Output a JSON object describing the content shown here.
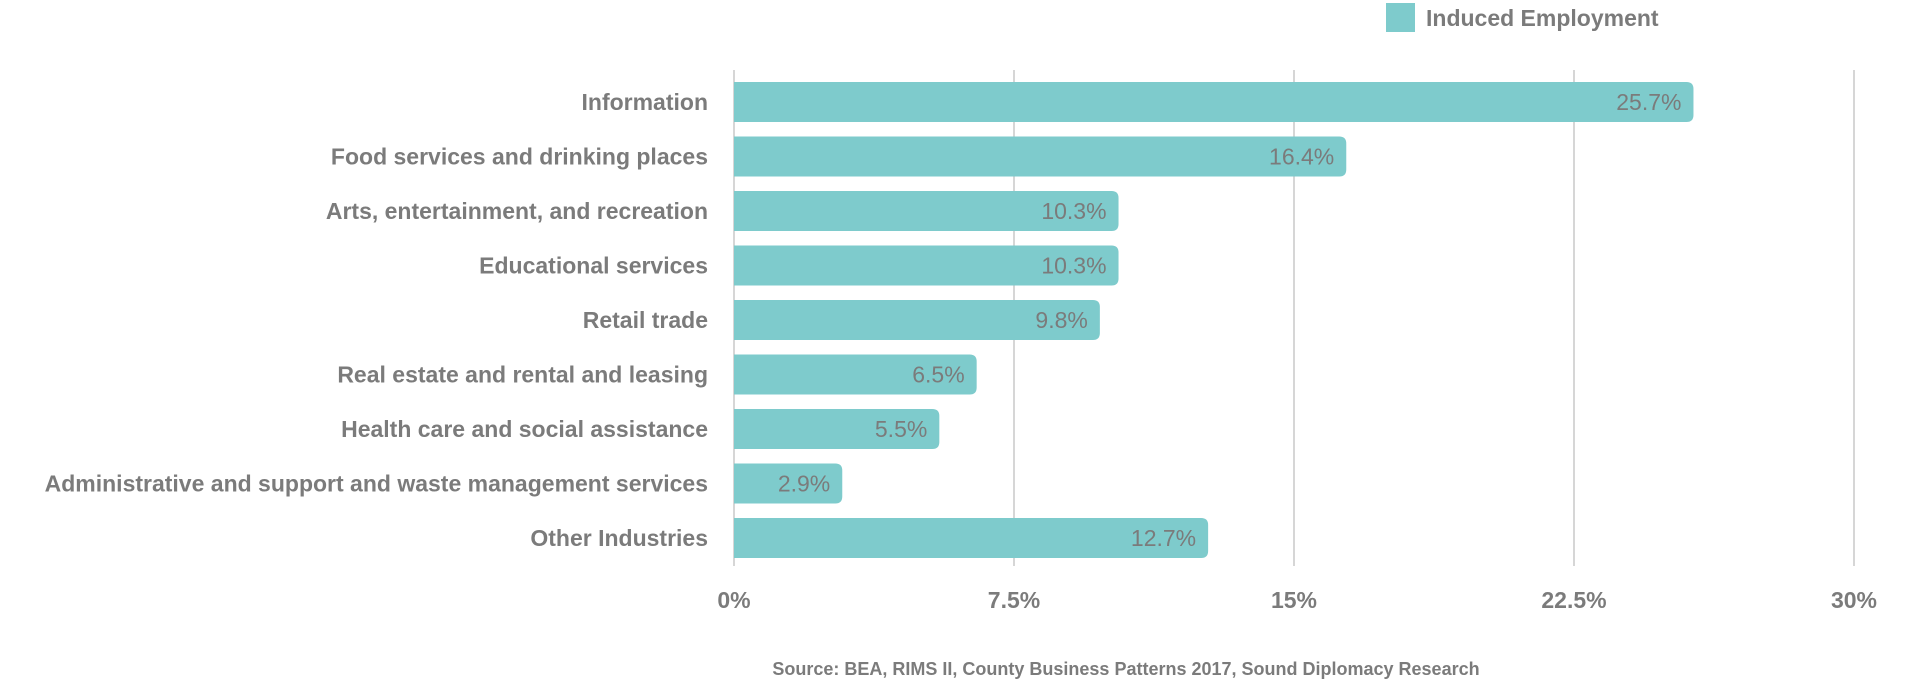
{
  "chart_data": {
    "type": "bar",
    "orientation": "horizontal",
    "title": "",
    "xlabel": "",
    "ylabel": "",
    "categories": [
      "Information",
      "Food services and drinking places",
      "Arts, entertainment, and recreation",
      "Educational services",
      "Retail trade",
      "Real estate and rental and leasing",
      "Health care and social assistance",
      "Administrative and support and waste management services",
      "Other Industries"
    ],
    "series": [
      {
        "name": "Induced Employment",
        "values": [
          25.7,
          16.4,
          10.3,
          10.3,
          9.8,
          6.5,
          5.5,
          2.9,
          12.7
        ],
        "labels": [
          "25.7%",
          "16.4%",
          "10.3%",
          "10.3%",
          "9.8%",
          "6.5%",
          "5.5%",
          "2.9%",
          "12.7%"
        ]
      }
    ],
    "xlim": [
      0,
      30
    ],
    "ticks": [
      0,
      7.5,
      15,
      22.5,
      30
    ],
    "tick_labels": [
      "0%",
      "7.5%",
      "15%",
      "22.5%",
      "30%"
    ],
    "grid": true,
    "legend_position": "top-right",
    "source": "Source: BEA, RIMS II, County Business Patterns 2017, Sound Diplomacy Research"
  },
  "colors": {
    "bar": "#7ecbcc",
    "grid": "#d6d6d6",
    "text": "#7b7b7b"
  }
}
